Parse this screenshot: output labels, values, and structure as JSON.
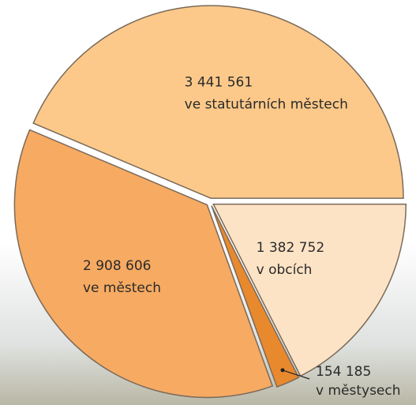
{
  "chart_data": {
    "type": "pie",
    "categories": [
      "ve statutárních městech",
      "ve městech",
      "v městysech",
      "v obcích"
    ],
    "values": [
      3441561,
      2908606,
      154185,
      1382752
    ],
    "value_labels": [
      "3 441 561",
      "2 908 606",
      "154 185",
      "1 382 752"
    ],
    "colors": [
      "#fcc98a",
      "#f7aa62",
      "#e8892e",
      "#fde3c5"
    ]
  }
}
